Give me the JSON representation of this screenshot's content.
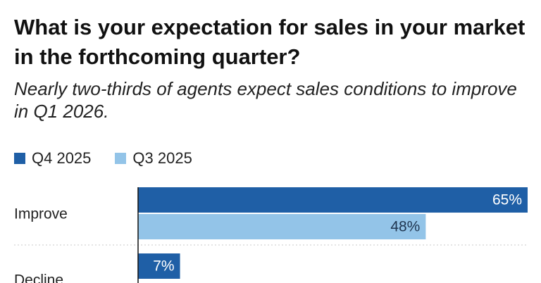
{
  "title": "What is your expectation for sales in your market in the forthcoming quarter?",
  "subtitle": "Nearly two-thirds of agents expect sales conditions to improve in Q1 2026.",
  "colors": {
    "q4": "#1f5fa6",
    "q3": "#93c4e8"
  },
  "chart_data": {
    "type": "bar",
    "orientation": "horizontal",
    "categories": [
      "Improve",
      "Decline"
    ],
    "series": [
      {
        "name": "Q4 2025",
        "values": [
          65,
          7
        ],
        "value_labels": [
          "65%",
          "7%"
        ],
        "color": "#1f5fa6"
      },
      {
        "name": "Q3 2025",
        "values": [
          48,
          null
        ],
        "value_labels": [
          "48%",
          ""
        ],
        "color": "#93c4e8"
      }
    ],
    "legend_position": "top-left",
    "title": "What is your expectation for sales in your market in the forthcoming quarter?",
    "subtitle": "Nearly two-thirds of agents expect sales conditions to improve in Q1 2026.",
    "xlabel": "",
    "ylabel": "",
    "xlim": [
      0,
      65
    ],
    "grid": false
  }
}
